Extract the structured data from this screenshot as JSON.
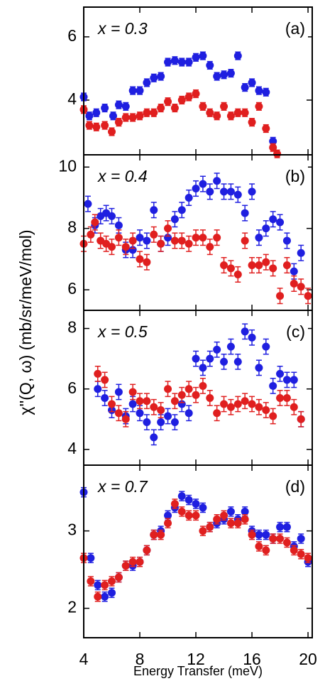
{
  "chart_data": [
    {
      "type": "scatter",
      "annotation": "x = 0.3",
      "label": "(a)",
      "ylabel": "χ''(Q, ω) (mb/sr/meV/mol)",
      "xlim": [
        4,
        20.3
      ],
      "ylim": [
        2.27,
        6.94
      ],
      "yticks": [
        4,
        6
      ],
      "series": [
        {
          "color": "#1f1fe0",
          "error": 0.12,
          "x": [
            4.0,
            4.4,
            4.9,
            5.5,
            6.1,
            6.5,
            7.0,
            7.5,
            8.0,
            8.5,
            9.0,
            9.5,
            10.0,
            10.5,
            11.0,
            11.5,
            12.0,
            12.5,
            13.0,
            13.5,
            14.0,
            14.5,
            15.0,
            15.5,
            16.0,
            16.5,
            17.0,
            17.5
          ],
          "values": [
            4.1,
            3.5,
            3.6,
            3.75,
            3.5,
            3.85,
            3.8,
            4.3,
            4.3,
            4.55,
            4.7,
            4.75,
            5.2,
            5.25,
            5.2,
            5.2,
            5.35,
            5.4,
            5.1,
            4.75,
            4.8,
            4.85,
            5.4,
            4.4,
            4.55,
            4.3,
            4.25,
            2.7
          ]
        },
        {
          "color": "#e01f1f",
          "error": 0.12,
          "x": [
            4.0,
            4.4,
            4.9,
            5.5,
            6.0,
            6.5,
            7.0,
            7.5,
            8.0,
            8.5,
            9.0,
            9.5,
            10.0,
            10.5,
            11.0,
            11.5,
            12.0,
            12.5,
            13.0,
            13.5,
            14.0,
            14.5,
            15.0,
            15.5,
            16.0,
            16.5,
            17.0,
            17.5,
            17.8
          ],
          "values": [
            3.7,
            3.2,
            3.15,
            3.2,
            3.0,
            3.3,
            3.45,
            3.45,
            3.5,
            3.6,
            3.6,
            3.75,
            3.95,
            3.75,
            4.0,
            4.1,
            4.2,
            3.8,
            3.6,
            3.5,
            3.8,
            3.5,
            3.6,
            3.6,
            3.3,
            3.8,
            3.1,
            2.5,
            2.3
          ]
        }
      ]
    },
    {
      "type": "scatter",
      "annotation": "x = 0.4",
      "label": "(b)",
      "xlim": [
        4,
        20.3
      ],
      "ylim": [
        5.33,
        10.4
      ],
      "yticks": [
        6,
        8,
        10
      ],
      "series": [
        {
          "color": "#1f1fe0",
          "error": 0.25,
          "x": [
            4.3,
            4.8,
            5.2,
            5.6,
            6.0,
            6.5,
            7.0,
            7.5,
            8.0,
            8.5,
            9.0,
            9.5,
            10.0,
            10.5,
            11.0,
            11.5,
            12.0,
            12.5,
            13.0,
            13.5,
            14.0,
            14.5,
            15.0,
            15.5,
            16.0,
            16.5,
            17.0,
            17.5,
            18.0,
            18.5,
            19.0,
            19.5
          ],
          "values": [
            8.8,
            8.1,
            8.4,
            8.5,
            8.4,
            8.1,
            7.3,
            7.3,
            7.7,
            7.6,
            8.6,
            7.5,
            7.7,
            8.3,
            8.6,
            9.0,
            9.3,
            9.45,
            9.2,
            9.55,
            9.2,
            9.2,
            9.1,
            8.5,
            9.2,
            7.7,
            8.0,
            8.3,
            8.2,
            7.6,
            6.6,
            7.2
          ]
        },
        {
          "color": "#e01f1f",
          "error": 0.25,
          "x": [
            4.0,
            4.5,
            4.8,
            5.2,
            5.6,
            6.0,
            6.5,
            7.0,
            7.5,
            8.0,
            8.5,
            9.0,
            9.5,
            10.0,
            10.5,
            11.0,
            11.5,
            12.0,
            12.5,
            13.0,
            13.5,
            14.0,
            14.5,
            15.0,
            15.5,
            16.0,
            16.5,
            17.0,
            17.5,
            18.0,
            18.5,
            19.0,
            19.5,
            20.0
          ],
          "values": [
            7.5,
            7.8,
            8.2,
            7.6,
            7.5,
            7.4,
            7.7,
            7.4,
            7.6,
            7.0,
            6.9,
            7.8,
            7.5,
            8.0,
            7.6,
            7.6,
            7.5,
            7.7,
            7.7,
            7.4,
            7.7,
            6.8,
            6.7,
            6.5,
            7.6,
            6.8,
            6.8,
            6.9,
            6.7,
            5.8,
            6.8,
            6.2,
            6.1,
            5.8
          ]
        }
      ]
    },
    {
      "type": "scatter",
      "annotation": "x = 0.5",
      "label": "(c)",
      "xlim": [
        4,
        20.3
      ],
      "ylim": [
        3.48,
        8.6
      ],
      "yticks": [
        4,
        6,
        8
      ],
      "series": [
        {
          "color": "#1f1fe0",
          "error": 0.25,
          "x": [
            5.0,
            5.5,
            6.0,
            6.5,
            7.0,
            7.5,
            8.0,
            8.5,
            9.0,
            9.5,
            10.0,
            10.5,
            11.0,
            11.5,
            12.0,
            12.5,
            13.0,
            13.5,
            14.0,
            14.5,
            15.0,
            15.5,
            16.0,
            16.5,
            17.0,
            17.5,
            18.0,
            18.5,
            19.0,
            19.5
          ],
          "values": [
            6.0,
            5.7,
            5.3,
            5.9,
            5.1,
            5.5,
            5.2,
            4.9,
            4.4,
            4.9,
            5.1,
            4.9,
            5.5,
            5.2,
            7.0,
            6.7,
            7.0,
            7.3,
            6.9,
            7.4,
            6.9,
            7.9,
            7.7,
            6.7,
            7.4,
            6.1,
            6.5,
            6.3,
            6.3,
            5.0
          ]
        },
        {
          "color": "#e01f1f",
          "error": 0.25,
          "x": [
            5.0,
            5.5,
            6.0,
            6.5,
            7.0,
            7.5,
            8.0,
            8.5,
            9.0,
            9.5,
            10.0,
            10.5,
            11.0,
            11.5,
            12.0,
            12.5,
            13.0,
            13.5,
            14.0,
            14.5,
            15.0,
            15.5,
            16.0,
            16.5,
            17.0,
            17.5,
            18.0,
            18.5,
            19.0,
            19.5
          ],
          "values": [
            6.5,
            6.3,
            5.5,
            5.2,
            5.0,
            5.9,
            5.6,
            5.6,
            5.4,
            5.3,
            6.0,
            5.6,
            5.8,
            6.0,
            5.8,
            6.1,
            5.7,
            5.2,
            5.5,
            5.4,
            5.5,
            5.6,
            5.5,
            5.4,
            5.3,
            5.1,
            5.7,
            5.7,
            5.4,
            5.0
          ]
        }
      ]
    },
    {
      "type": "scatter",
      "annotation": "x = 0.7",
      "label": "(d)",
      "xlabel": "Energy Transfer (meV)",
      "xlim": [
        4,
        20.3
      ],
      "xticks": [
        4,
        8,
        12,
        16,
        20
      ],
      "ylim": [
        1.62,
        3.85
      ],
      "yticks": [
        2,
        3
      ],
      "series": [
        {
          "color": "#1f1fe0",
          "error": 0.06,
          "x": [
            4.0,
            4.5,
            5.0,
            5.5,
            6.0,
            6.5,
            7.0,
            7.5,
            8.0,
            8.5,
            9.0,
            9.5,
            10.0,
            10.5,
            11.0,
            11.5,
            12.0,
            12.5,
            13.0,
            13.5,
            14.0,
            14.5,
            15.0,
            15.5,
            16.0,
            16.5,
            17.0,
            17.5,
            18.0,
            18.5,
            19.0,
            19.5,
            20.0
          ],
          "values": [
            3.5,
            2.65,
            2.3,
            2.15,
            2.2,
            2.4,
            2.55,
            2.55,
            2.6,
            2.75,
            2.95,
            3.0,
            3.2,
            3.3,
            3.45,
            3.4,
            3.35,
            3.3,
            3.05,
            3.1,
            3.15,
            3.25,
            3.15,
            3.25,
            3.0,
            2.95,
            2.95,
            2.9,
            3.05,
            3.05,
            2.8,
            2.9,
            2.6
          ]
        },
        {
          "color": "#e01f1f",
          "error": 0.06,
          "x": [
            4.0,
            4.5,
            5.0,
            5.5,
            6.0,
            6.5,
            7.0,
            7.5,
            8.0,
            8.5,
            9.0,
            9.5,
            10.0,
            10.5,
            11.0,
            11.5,
            12.0,
            12.5,
            13.0,
            13.5,
            14.0,
            14.5,
            15.0,
            15.5,
            16.0,
            16.5,
            17.0,
            17.5,
            18.0,
            18.5,
            19.0,
            19.5,
            20.0
          ],
          "values": [
            2.65,
            2.35,
            2.15,
            2.3,
            2.35,
            2.4,
            2.55,
            2.6,
            2.6,
            2.75,
            2.95,
            2.95,
            3.1,
            3.35,
            3.25,
            3.2,
            3.2,
            3.0,
            3.05,
            3.15,
            3.2,
            3.1,
            3.1,
            3.15,
            2.95,
            2.8,
            2.75,
            2.9,
            2.9,
            2.85,
            2.75,
            2.7,
            2.65
          ]
        }
      ]
    }
  ]
}
